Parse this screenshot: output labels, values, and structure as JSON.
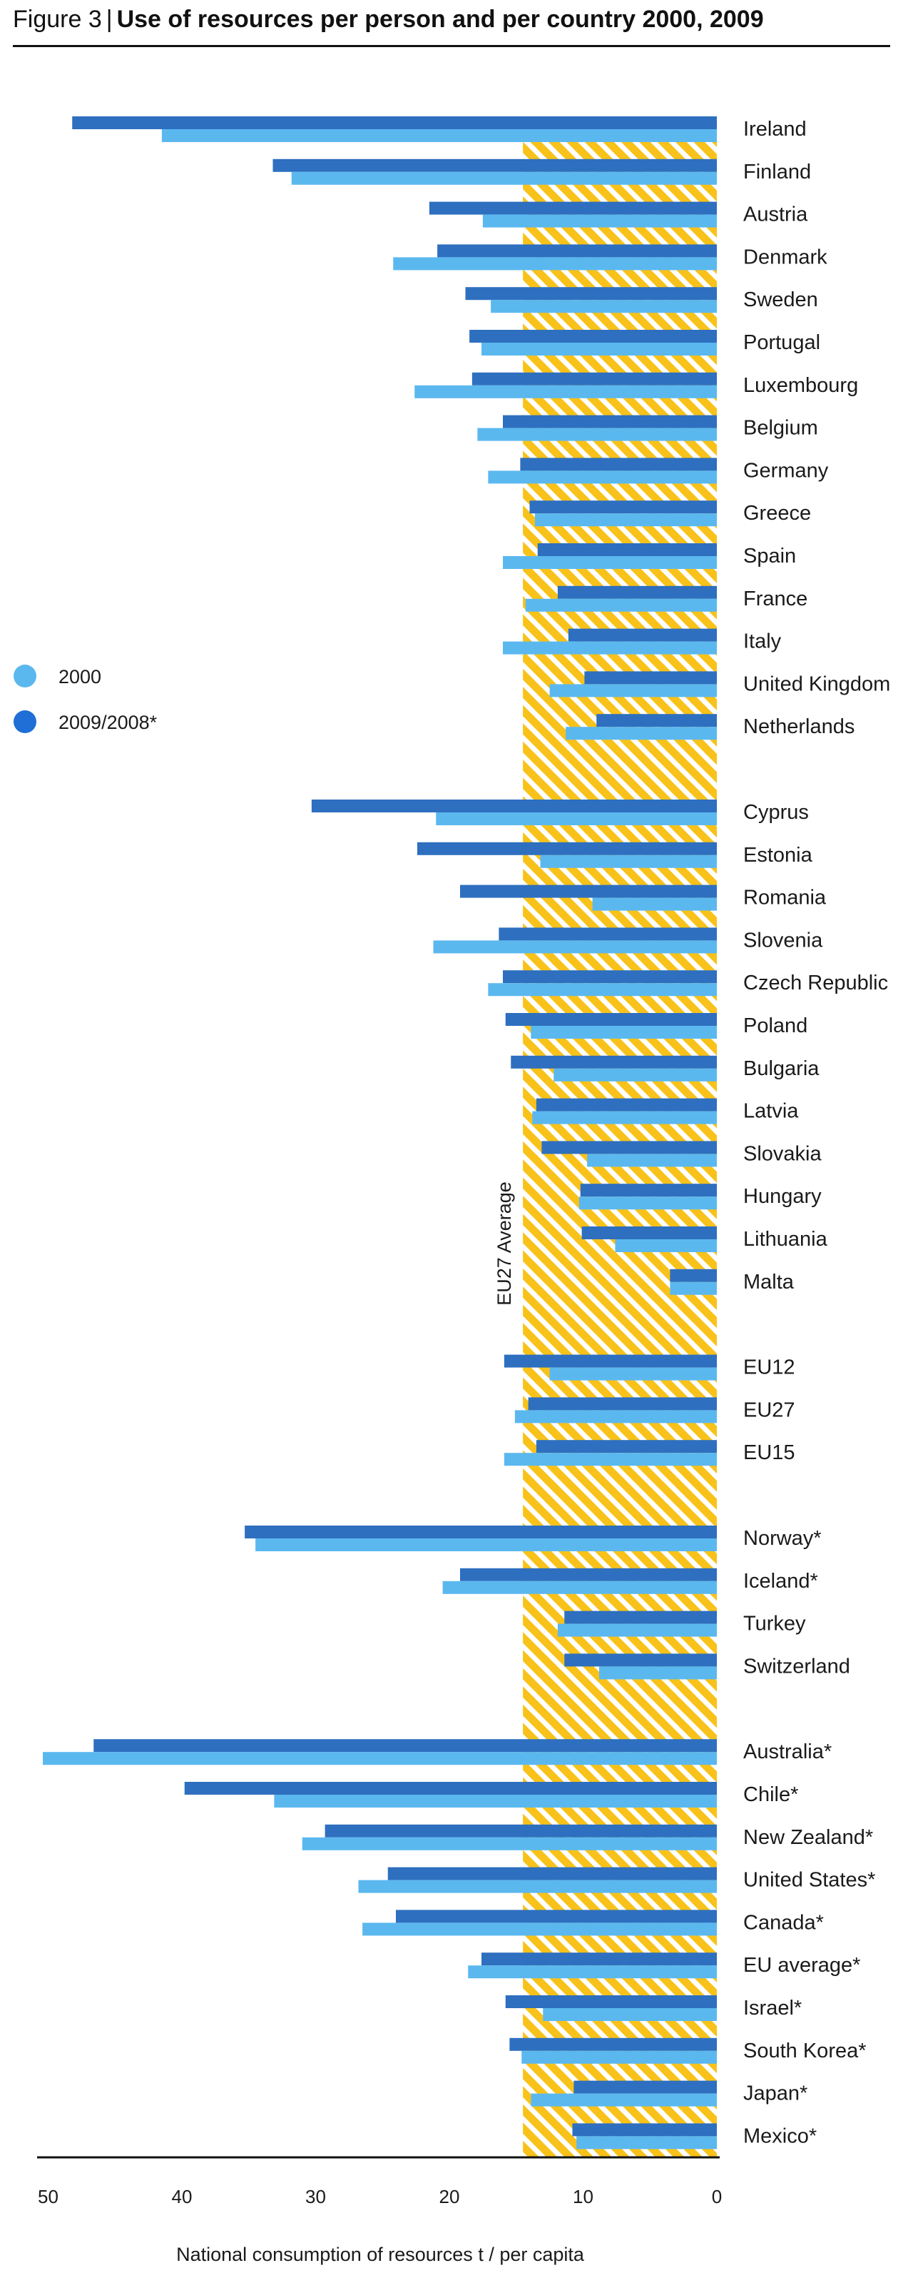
{
  "header": {
    "figure_label": "Figure 3",
    "separator": "|",
    "title": "Use of resources per person and per country 2000, 2009"
  },
  "colors": {
    "series_2000": "#5bb8ef",
    "series_2009": "#2e6fbf",
    "legend_2009": "#1f6fd6",
    "average_band": "#f8c21a",
    "average_band_stripe": "#ffffff",
    "axis": "#111111"
  },
  "chart_data": {
    "type": "bar",
    "orientation": "horizontal",
    "x_direction": "reversed",
    "xlabel": "National consumption of resources t / per capita",
    "ylabel": "",
    "xlim": [
      0,
      51
    ],
    "xticks": [
      50,
      40,
      30,
      20,
      10,
      0
    ],
    "grid": false,
    "legend_position": "middle-left",
    "average": {
      "label": "EU27 Average",
      "value": 14.5
    },
    "series": [
      {
        "name": "2000",
        "key": "v2000"
      },
      {
        "name": "2009/2008*",
        "key": "v2009"
      }
    ],
    "groups": [
      {
        "items": [
          {
            "label": "Ireland",
            "v2000": 41.5,
            "v2009": 48.2
          },
          {
            "label": "Finland",
            "v2000": 31.8,
            "v2009": 33.2
          },
          {
            "label": "Austria",
            "v2000": 17.5,
            "v2009": 21.5
          },
          {
            "label": "Denmark",
            "v2000": 24.2,
            "v2009": 20.9
          },
          {
            "label": "Sweden",
            "v2000": 16.9,
            "v2009": 18.8
          },
          {
            "label": "Portugal",
            "v2000": 17.6,
            "v2009": 18.5
          },
          {
            "label": "Luxembourg",
            "v2000": 22.6,
            "v2009": 18.3
          },
          {
            "label": "Belgium",
            "v2000": 17.9,
            "v2009": 16.0
          },
          {
            "label": "Germany",
            "v2000": 17.1,
            "v2009": 14.7
          },
          {
            "label": "Greece",
            "v2000": 13.6,
            "v2009": 14.0
          },
          {
            "label": "Spain",
            "v2000": 16.0,
            "v2009": 13.4
          },
          {
            "label": "France",
            "v2000": 14.3,
            "v2009": 11.9
          },
          {
            "label": "Italy",
            "v2000": 16.0,
            "v2009": 11.1
          },
          {
            "label": "United Kingdom",
            "v2000": 12.5,
            "v2009": 9.9
          },
          {
            "label": "Netherlands",
            "v2000": 11.3,
            "v2009": 9.0
          }
        ]
      },
      {
        "items": [
          {
            "label": "Cyprus",
            "v2000": 21.0,
            "v2009": 30.3
          },
          {
            "label": "Estonia",
            "v2000": 13.2,
            "v2009": 22.4
          },
          {
            "label": "Romania",
            "v2000": 9.3,
            "v2009": 19.2
          },
          {
            "label": "Slovenia",
            "v2000": 21.2,
            "v2009": 16.3
          },
          {
            "label": "Czech Republic",
            "v2000": 17.1,
            "v2009": 16.0
          },
          {
            "label": "Poland",
            "v2000": 13.9,
            "v2009": 15.8
          },
          {
            "label": "Bulgaria",
            "v2000": 12.2,
            "v2009": 15.4
          },
          {
            "label": "Latvia",
            "v2000": 13.8,
            "v2009": 13.5
          },
          {
            "label": "Slovakia",
            "v2000": 9.7,
            "v2009": 13.1
          },
          {
            "label": "Hungary",
            "v2000": 10.3,
            "v2009": 10.2
          },
          {
            "label": "Lithuania",
            "v2000": 7.6,
            "v2009": 10.1
          },
          {
            "label": "Malta",
            "v2000": 3.5,
            "v2009": 3.5
          }
        ]
      },
      {
        "items": [
          {
            "label": "EU12",
            "v2000": 12.5,
            "v2009": 15.9
          },
          {
            "label": "EU27",
            "v2000": 15.1,
            "v2009": 14.1
          },
          {
            "label": "EU15",
            "v2000": 15.9,
            "v2009": 13.5
          }
        ]
      },
      {
        "items": [
          {
            "label": "Norway*",
            "v2000": 34.5,
            "v2009": 35.3
          },
          {
            "label": "Iceland*",
            "v2000": 20.5,
            "v2009": 19.2
          },
          {
            "label": "Turkey",
            "v2000": 11.9,
            "v2009": 11.4
          },
          {
            "label": "Switzerland",
            "v2000": 8.8,
            "v2009": 11.4
          }
        ]
      },
      {
        "items": [
          {
            "label": "Australia*",
            "v2000": 50.4,
            "v2009": 46.6
          },
          {
            "label": "Chile*",
            "v2000": 33.1,
            "v2009": 39.8
          },
          {
            "label": "New Zealand*",
            "v2000": 31.0,
            "v2009": 29.3
          },
          {
            "label": "United States*",
            "v2000": 26.8,
            "v2009": 24.6
          },
          {
            "label": "Canada*",
            "v2000": 26.5,
            "v2009": 24.0
          },
          {
            "label": "EU average*",
            "v2000": 18.6,
            "v2009": 17.6
          },
          {
            "label": "Israel*",
            "v2000": 13.0,
            "v2009": 15.8
          },
          {
            "label": "South Korea*",
            "v2000": 14.6,
            "v2009": 15.5
          },
          {
            "label": "Japan*",
            "v2000": 13.9,
            "v2009": 10.7
          },
          {
            "label": "Mexico*",
            "v2000": 10.5,
            "v2009": 10.8
          }
        ]
      }
    ]
  }
}
